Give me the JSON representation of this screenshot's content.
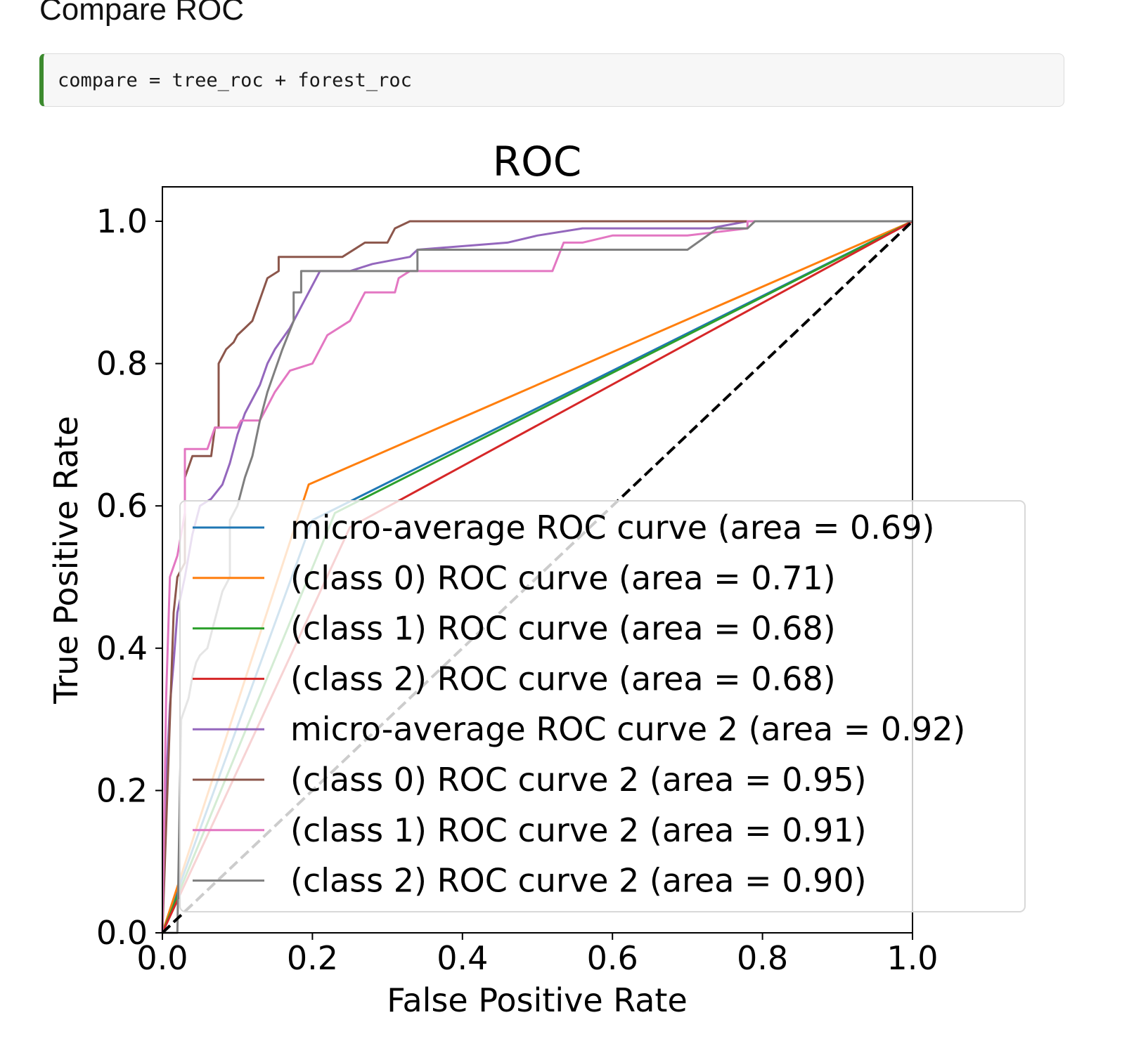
{
  "section": {
    "heading": "Compare ROC"
  },
  "code_cell": {
    "code": "compare = tree_roc + forest_roc"
  },
  "chart_data": {
    "type": "line",
    "title": "ROC",
    "xlabel": "False Positive Rate",
    "ylabel": "True Positive Rate",
    "xlim": [
      0.0,
      1.0
    ],
    "ylim": [
      0.0,
      1.05
    ],
    "xticks": [
      "0.0",
      "0.2",
      "0.4",
      "0.6",
      "0.8",
      "1.0"
    ],
    "yticks": [
      "0.0",
      "0.2",
      "0.4",
      "0.6",
      "0.8",
      "1.0"
    ],
    "grid": false,
    "legend_position": "lower-right",
    "series": [
      {
        "name": "micro-average ROC curve (area = 0.69)",
        "color": "#1f77b4",
        "points": [
          [
            0,
            0
          ],
          [
            0.2,
            0.58
          ],
          [
            1,
            1
          ]
        ]
      },
      {
        "name": "(class 0) ROC curve (area = 0.71)",
        "color": "#ff7f0e",
        "points": [
          [
            0,
            0
          ],
          [
            0.195,
            0.63
          ],
          [
            1,
            1
          ]
        ]
      },
      {
        "name": "(class 1) ROC curve (area = 0.68)",
        "color": "#2ca02c",
        "points": [
          [
            0,
            0
          ],
          [
            0.23,
            0.59
          ],
          [
            1,
            1
          ]
        ]
      },
      {
        "name": "(class 2) ROC curve (area = 0.68)",
        "color": "#d62728",
        "points": [
          [
            0,
            0
          ],
          [
            0.25,
            0.57
          ],
          [
            1,
            1
          ]
        ]
      },
      {
        "name": "micro-average ROC curve 2 (area = 0.92)",
        "color": "#9467bd",
        "points": [
          [
            0,
            0
          ],
          [
            0.005,
            0.21
          ],
          [
            0.01,
            0.32
          ],
          [
            0.015,
            0.38
          ],
          [
            0.02,
            0.45
          ],
          [
            0.03,
            0.5
          ],
          [
            0.04,
            0.56
          ],
          [
            0.05,
            0.6
          ],
          [
            0.065,
            0.61
          ],
          [
            0.08,
            0.63
          ],
          [
            0.09,
            0.66
          ],
          [
            0.1,
            0.7
          ],
          [
            0.11,
            0.73
          ],
          [
            0.13,
            0.77
          ],
          [
            0.14,
            0.8
          ],
          [
            0.15,
            0.82
          ],
          [
            0.17,
            0.85
          ],
          [
            0.18,
            0.87
          ],
          [
            0.19,
            0.89
          ],
          [
            0.21,
            0.93
          ],
          [
            0.25,
            0.93
          ],
          [
            0.28,
            0.94
          ],
          [
            0.33,
            0.95
          ],
          [
            0.34,
            0.96
          ],
          [
            0.46,
            0.97
          ],
          [
            0.5,
            0.98
          ],
          [
            0.56,
            0.99
          ],
          [
            0.73,
            0.99
          ],
          [
            0.78,
            1
          ],
          [
            1,
            1
          ]
        ]
      },
      {
        "name": "(class 0) ROC curve 2 (area = 0.95)",
        "color": "#8c564b",
        "points": [
          [
            0,
            0
          ],
          [
            0.01,
            0.3
          ],
          [
            0.015,
            0.45
          ],
          [
            0.02,
            0.5
          ],
          [
            0.03,
            0.52
          ],
          [
            0.03,
            0.64
          ],
          [
            0.04,
            0.67
          ],
          [
            0.065,
            0.67
          ],
          [
            0.07,
            0.71
          ],
          [
            0.075,
            0.71
          ],
          [
            0.075,
            0.8
          ],
          [
            0.085,
            0.82
          ],
          [
            0.095,
            0.83
          ],
          [
            0.1,
            0.84
          ],
          [
            0.11,
            0.85
          ],
          [
            0.12,
            0.86
          ],
          [
            0.13,
            0.89
          ],
          [
            0.14,
            0.92
          ],
          [
            0.155,
            0.93
          ],
          [
            0.155,
            0.95
          ],
          [
            0.24,
            0.95
          ],
          [
            0.27,
            0.97
          ],
          [
            0.3,
            0.97
          ],
          [
            0.31,
            0.99
          ],
          [
            0.33,
            1
          ],
          [
            1,
            1
          ]
        ]
      },
      {
        "name": "(class 1) ROC curve 2 (area = 0.91)",
        "color": "#e377c2",
        "points": [
          [
            0,
            0
          ],
          [
            0.005,
            0.33
          ],
          [
            0.01,
            0.5
          ],
          [
            0.02,
            0.53
          ],
          [
            0.03,
            0.59
          ],
          [
            0.03,
            0.68
          ],
          [
            0.06,
            0.68
          ],
          [
            0.07,
            0.71
          ],
          [
            0.1,
            0.71
          ],
          [
            0.105,
            0.72
          ],
          [
            0.13,
            0.72
          ],
          [
            0.14,
            0.74
          ],
          [
            0.15,
            0.76
          ],
          [
            0.17,
            0.79
          ],
          [
            0.2,
            0.8
          ],
          [
            0.21,
            0.82
          ],
          [
            0.22,
            0.84
          ],
          [
            0.25,
            0.86
          ],
          [
            0.26,
            0.88
          ],
          [
            0.27,
            0.9
          ],
          [
            0.31,
            0.9
          ],
          [
            0.315,
            0.92
          ],
          [
            0.33,
            0.93
          ],
          [
            0.52,
            0.93
          ],
          [
            0.535,
            0.97
          ],
          [
            0.56,
            0.97
          ],
          [
            0.6,
            0.98
          ],
          [
            0.7,
            0.98
          ],
          [
            0.78,
            0.99
          ],
          [
            0.78,
            1
          ],
          [
            0.8,
            1
          ],
          [
            1,
            1
          ]
        ]
      },
      {
        "name": "(class 2) ROC curve 2 (area = 0.90)",
        "color": "#7f7f7f",
        "points": [
          [
            0,
            0
          ],
          [
            0.02,
            0
          ],
          [
            0.025,
            0.3
          ],
          [
            0.035,
            0.33
          ],
          [
            0.04,
            0.36
          ],
          [
            0.045,
            0.38
          ],
          [
            0.05,
            0.39
          ],
          [
            0.06,
            0.4
          ],
          [
            0.07,
            0.44
          ],
          [
            0.08,
            0.48
          ],
          [
            0.09,
            0.5
          ],
          [
            0.09,
            0.58
          ],
          [
            0.1,
            0.6
          ],
          [
            0.11,
            0.64
          ],
          [
            0.12,
            0.67
          ],
          [
            0.13,
            0.72
          ],
          [
            0.14,
            0.76
          ],
          [
            0.15,
            0.79
          ],
          [
            0.16,
            0.82
          ],
          [
            0.175,
            0.86
          ],
          [
            0.175,
            0.9
          ],
          [
            0.185,
            0.9
          ],
          [
            0.185,
            0.93
          ],
          [
            0.34,
            0.93
          ],
          [
            0.34,
            0.96
          ],
          [
            0.7,
            0.96
          ],
          [
            0.74,
            0.99
          ],
          [
            0.78,
            0.99
          ],
          [
            0.79,
            1
          ],
          [
            1,
            1
          ]
        ]
      }
    ],
    "reference_line": {
      "points": [
        [
          0,
          0
        ],
        [
          1,
          1
        ]
      ],
      "color": "#000000",
      "style": "dashed"
    }
  }
}
